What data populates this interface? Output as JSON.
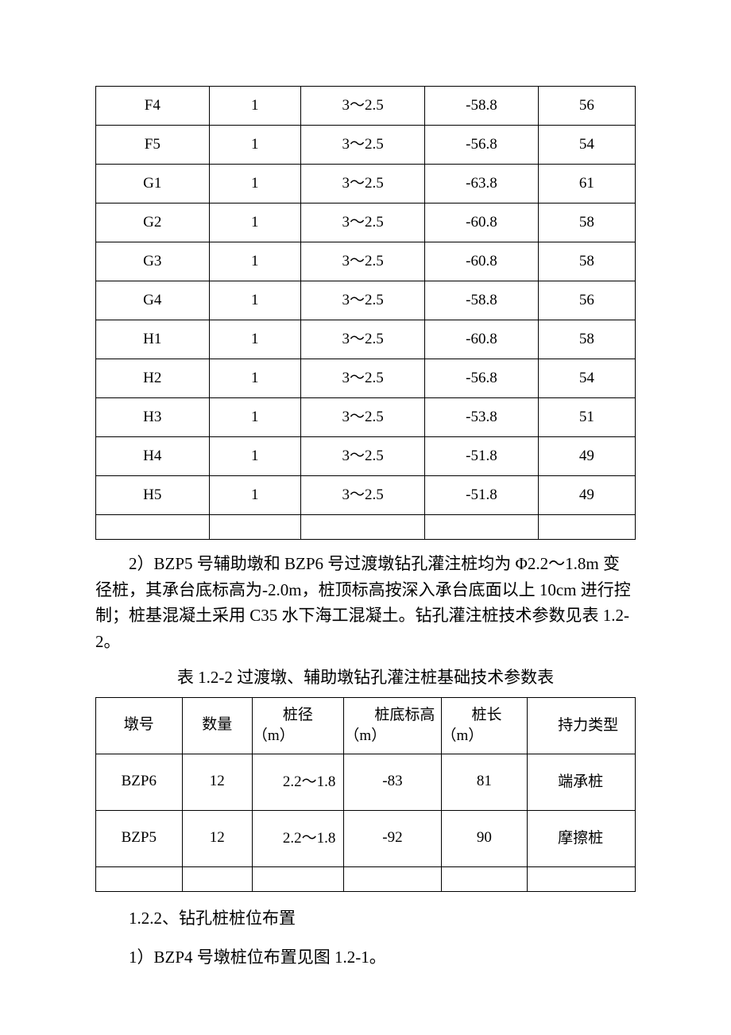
{
  "table1": {
    "rows": [
      {
        "c1": "F4",
        "c2": "1",
        "c3": "3～2.5",
        "c4": "-58.8",
        "c5": "56"
      },
      {
        "c1": "F5",
        "c2": "1",
        "c3": "3～2.5",
        "c4": "-56.8",
        "c5": "54"
      },
      {
        "c1": "G1",
        "c2": "1",
        "c3": "3～2.5",
        "c4": "-63.8",
        "c5": "61"
      },
      {
        "c1": "G2",
        "c2": "1",
        "c3": "3～2.5",
        "c4": "-60.8",
        "c5": "58"
      },
      {
        "c1": "G3",
        "c2": "1",
        "c3": "3～2.5",
        "c4": "-60.8",
        "c5": "58"
      },
      {
        "c1": "G4",
        "c2": "1",
        "c3": "3～2.5",
        "c4": "-58.8",
        "c5": "56"
      },
      {
        "c1": "H1",
        "c2": "1",
        "c3": "3～2.5",
        "c4": "-60.8",
        "c5": "58"
      },
      {
        "c1": "H2",
        "c2": "1",
        "c3": "3～2.5",
        "c4": "-56.8",
        "c5": "54"
      },
      {
        "c1": "H3",
        "c2": "1",
        "c3": "3～2.5",
        "c4": "-53.8",
        "c5": "51"
      },
      {
        "c1": "H4",
        "c2": "1",
        "c3": "3～2.5",
        "c4": "-51.8",
        "c5": "49"
      },
      {
        "c1": "H5",
        "c2": "1",
        "c3": "3～2.5",
        "c4": "-51.8",
        "c5": "49"
      }
    ]
  },
  "paragraph1": "2）BZP5 号辅助墩和 BZP6 号过渡墩钻孔灌注桩均为 Φ2.2～1.8m 变径桩，其承台底标高为-2.0m，桩顶标高按深入承台底面以上 10cm 进行控制；桩基混凝土采用 C35 水下海工混凝土。钻孔灌注桩技术参数见表 1.2-2。",
  "table2": {
    "caption": "表 1.2-2 过渡墩、辅助墩钻孔灌注桩基础技术参数表",
    "headers": {
      "h1": "墩号",
      "h2": "数量",
      "h3": "桩径（m）",
      "h4": "桩底标高（m）",
      "h5": "桩长（m）",
      "h6": "持力类型"
    },
    "rows": [
      {
        "c1": "BZP6",
        "c2": "12",
        "c3": "2.2～1.8",
        "c4": "-83",
        "c5": "81",
        "c6": "端承桩"
      },
      {
        "c1": "BZP5",
        "c2": "12",
        "c3": "2.2～1.8",
        "c4": "-92",
        "c5": "90",
        "c6": "摩擦桩"
      }
    ]
  },
  "section1": "1.2.2、钻孔桩桩位布置",
  "section2": "1）BZP4 号墩桩位布置见图 1.2-1。"
}
